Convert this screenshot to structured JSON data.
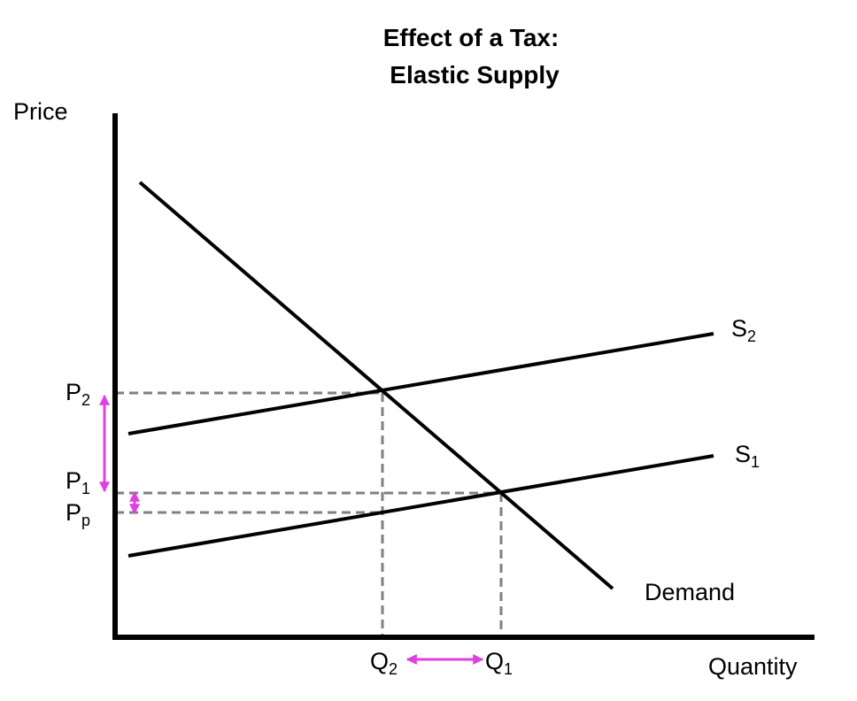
{
  "title": {
    "line1": "Effect of a Tax:",
    "line2": "Elastic Supply"
  },
  "axes": {
    "y_label": "Price",
    "x_label": "Quantity"
  },
  "curves": {
    "s2": {
      "main": "S",
      "sub": "2"
    },
    "s1": {
      "main": "S",
      "sub": "1"
    },
    "demand": "Demand"
  },
  "prices": {
    "p2": {
      "main": "P",
      "sub": "2"
    },
    "p1": {
      "main": "P",
      "sub": "1"
    },
    "pp": {
      "main": "P",
      "sub": "p"
    }
  },
  "quantities": {
    "q2": {
      "main": "Q",
      "sub": "2"
    },
    "q1": {
      "main": "Q",
      "sub": "1"
    }
  }
}
